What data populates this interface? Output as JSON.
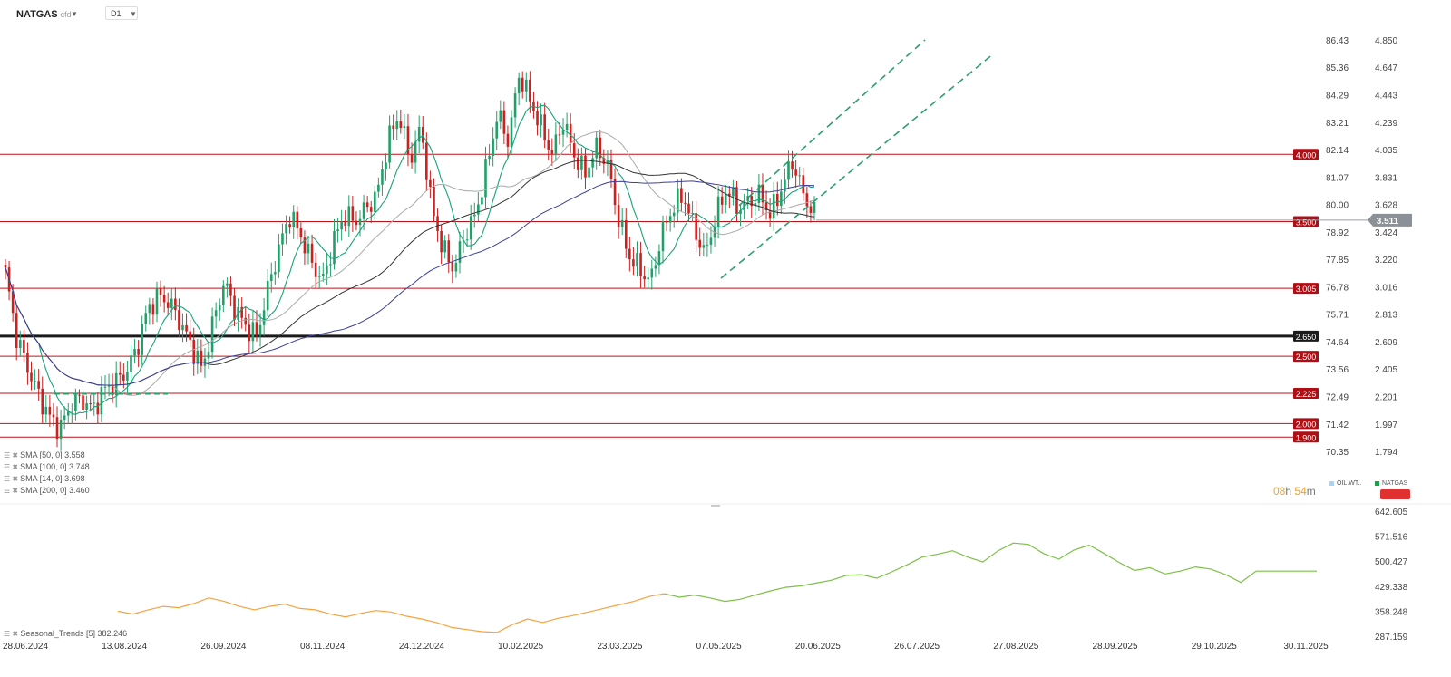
{
  "header": {
    "symbol": "NATGAS",
    "sub": "cfd",
    "timeframe": "D1"
  },
  "sma_legend": [
    {
      "label": "SMA [50, 0] 3.558"
    },
    {
      "label": "SMA [100, 0] 3.748"
    },
    {
      "label": "SMA [14, 0] 3.698"
    },
    {
      "label": "SMA [200, 0] 3.460"
    }
  ],
  "timer": {
    "hours": "08",
    "h": "h",
    "minutes": "54",
    "m": "m"
  },
  "legend_right": [
    {
      "label": "OIL.WT..",
      "color": "#a9d3f0"
    },
    {
      "label": "NATGAS",
      "color": "#16a34a"
    }
  ],
  "seasonal": {
    "label": "Seasonal_Trends [5] 382.246"
  },
  "colors": {
    "up": "#22a06b",
    "down": "#d01f1f",
    "level": "#c0101a",
    "level_bold": "#1a1a1a",
    "current": "#8b9196"
  },
  "chart_data": [
    {
      "type": "candlestick",
      "symbol": "NATGAS",
      "x_ticks": [
        "28.06.2024",
        "13.08.2024",
        "26.09.2024",
        "08.11.2024",
        "24.12.2024",
        "10.02.2025",
        "23.03.2025",
        "07.05.2025",
        "20.06.2025",
        "26.07.2025",
        "27.08.2025",
        "28.09.2025",
        "29.10.2025",
        "30.11.2025"
      ],
      "y_right_ticks": [
        4.85,
        4.647,
        4.443,
        4.239,
        4.035,
        3.831,
        3.628,
        3.424,
        3.22,
        3.016,
        2.813,
        2.609,
        2.405,
        2.201,
        1.997,
        1.794
      ],
      "y_right_labels": [
        "4.850",
        "4.647",
        "4.443",
        "4.239",
        "4.035",
        "3.831",
        "3.628",
        "3.424",
        "3.220",
        "3.016",
        "2.813",
        "2.609",
        "2.405",
        "2.201",
        "1.997",
        "1.794"
      ],
      "y_left_ticks": [
        "86.43",
        "85.36",
        "84.29",
        "83.21",
        "82.14",
        "81.07",
        "80.00",
        "78.92",
        "77.85",
        "76.78",
        "75.71",
        "74.64",
        "73.56",
        "72.49",
        "71.42",
        "70.35"
      ],
      "ylim": [
        1.794,
        4.85
      ],
      "current_price": 3.511,
      "current_price_label": "3.511",
      "levels": [
        {
          "value": 4.0,
          "label": "4.000",
          "bold": false
        },
        {
          "value": 3.5,
          "label": "3.500",
          "bold": false
        },
        {
          "value": 3.005,
          "label": "3.005",
          "bold": false
        },
        {
          "value": 2.65,
          "label": "2.650",
          "bold": true
        },
        {
          "value": 2.5,
          "label": "2.500",
          "bold": false
        },
        {
          "value": 2.225,
          "label": "2.225",
          "bold": false
        },
        {
          "value": 2.0,
          "label": "2.000",
          "bold": false
        },
        {
          "value": 1.9,
          "label": "1.900",
          "bold": false
        }
      ],
      "series_trend": [
        3.12,
        2.65,
        2.42,
        2.22,
        2.05,
        1.96,
        2.15,
        2.18,
        2.1,
        2.25,
        2.3,
        2.38,
        2.55,
        2.85,
        2.95,
        2.9,
        2.75,
        2.58,
        2.4,
        2.75,
        3.05,
        2.85,
        2.72,
        2.65,
        3.0,
        3.3,
        3.55,
        3.4,
        3.2,
        3.05,
        3.35,
        3.55,
        3.5,
        3.6,
        3.7,
        4.1,
        4.3,
        3.95,
        4.2,
        3.6,
        3.3,
        3.15,
        3.4,
        3.55,
        3.9,
        4.3,
        4.1,
        4.6,
        4.4,
        4.2,
        4.0,
        4.25,
        4.0,
        3.85,
        4.05,
        3.95,
        3.55,
        3.25,
        3.15,
        3.05,
        3.4,
        3.6,
        3.7,
        3.45,
        3.25,
        3.55,
        3.75,
        3.6,
        3.65,
        3.7,
        3.55,
        3.75,
        3.95,
        3.7,
        3.55
      ]
    },
    {
      "type": "line",
      "name": "Seasonal_Trends [5]",
      "y_right_labels": [
        "642.605",
        "571.516",
        "500.427",
        "429.338",
        "358.248",
        "287.159"
      ],
      "ylim": [
        287.159,
        642.605
      ],
      "values": [
        358,
        350,
        362,
        372,
        368,
        380,
        396,
        386,
        372,
        362,
        372,
        378,
        366,
        362,
        350,
        342,
        352,
        360,
        356,
        344,
        336,
        326,
        312,
        306,
        300,
        298,
        320,
        336,
        326,
        338,
        346,
        356,
        366,
        376,
        386,
        400,
        408,
        398,
        404,
        396,
        386,
        392,
        404,
        416,
        426,
        430,
        438,
        446,
        460,
        462,
        452,
        470,
        490,
        512,
        520,
        530,
        512,
        498,
        530,
        552,
        548,
        522,
        506,
        532,
        546,
        522,
        496,
        474,
        482,
        464,
        472,
        484,
        478,
        462,
        440,
        472,
        472,
        472,
        472,
        472
      ]
    }
  ]
}
